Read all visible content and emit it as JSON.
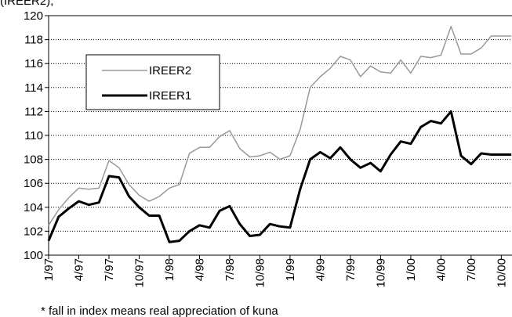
{
  "chart_data": {
    "type": "line",
    "title": "(IREER2),",
    "footnote": "* fall in index means real appreciation of kuna",
    "categories": [
      "1/97",
      null,
      null,
      "4/97",
      null,
      null,
      "7/97",
      null,
      null,
      "10/97",
      null,
      null,
      "1/98",
      null,
      null,
      "4/98",
      null,
      null,
      "7/98",
      null,
      null,
      "10/98",
      null,
      null,
      "1/99",
      null,
      null,
      "4/99",
      null,
      null,
      "7/99",
      null,
      null,
      "10/99",
      null,
      null,
      "1/00",
      null,
      null,
      "4/00",
      null,
      null,
      "7/00",
      null,
      null,
      "10/00",
      null
    ],
    "series": [
      {
        "name": "IREER2",
        "color": "#999999",
        "width": 1.5,
        "values": [
          102.5,
          103.8,
          104.8,
          105.6,
          105.5,
          105.6,
          107.9,
          107.3,
          105.9,
          105.0,
          104.5,
          104.9,
          105.6,
          105.9,
          108.5,
          109.0,
          109.0,
          109.9,
          110.4,
          108.9,
          108.2,
          108.3,
          108.6,
          108.0,
          108.3,
          110.5,
          114.0,
          114.9,
          115.6,
          116.6,
          116.3,
          114.9,
          115.8,
          115.3,
          115.2,
          116.3,
          115.2,
          116.6,
          116.5,
          116.7,
          119.1,
          116.8,
          116.8,
          117.3,
          118.3,
          118.3,
          118.3
        ]
      },
      {
        "name": "IREER1",
        "color": "#000000",
        "width": 3,
        "values": [
          101.2,
          103.2,
          103.9,
          104.5,
          104.2,
          104.4,
          106.6,
          106.5,
          104.9,
          104.0,
          103.3,
          103.3,
          101.1,
          101.2,
          102.0,
          102.5,
          102.3,
          103.7,
          104.1,
          102.6,
          101.6,
          101.7,
          102.6,
          102.4,
          102.3,
          105.5,
          108.0,
          108.6,
          108.1,
          109.0,
          108.0,
          107.3,
          107.7,
          107.0,
          108.4,
          109.5,
          109.3,
          110.7,
          111.2,
          111.0,
          112.0,
          108.3,
          107.6,
          108.5,
          108.4,
          108.4,
          108.4
        ]
      }
    ],
    "ylim": [
      100,
      120
    ],
    "yticks": [
      100,
      102,
      104,
      106,
      108,
      110,
      112,
      114,
      116,
      118,
      120
    ],
    "grid": true,
    "legend": "upper-left"
  }
}
